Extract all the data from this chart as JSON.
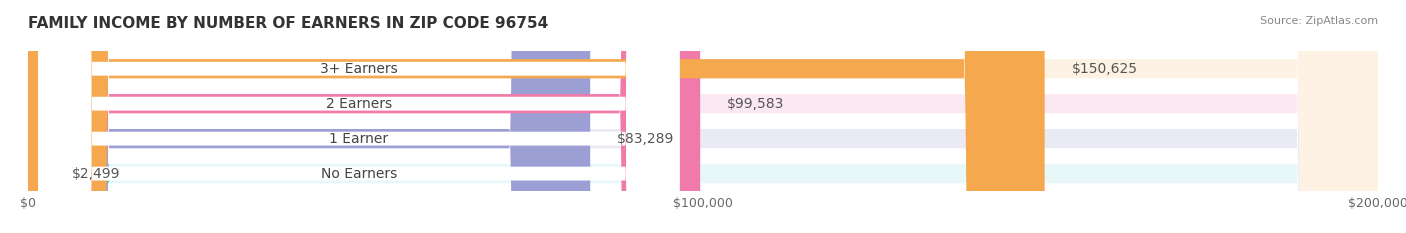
{
  "title": "FAMILY INCOME BY NUMBER OF EARNERS IN ZIP CODE 96754",
  "source": "Source: ZipAtlas.com",
  "categories": [
    "No Earners",
    "1 Earner",
    "2 Earners",
    "3+ Earners"
  ],
  "values": [
    2499,
    83289,
    99583,
    150625
  ],
  "labels": [
    "$2,499",
    "$83,289",
    "$99,583",
    "$150,625"
  ],
  "bar_colors": [
    "#5ecfcf",
    "#9b9fd4",
    "#f07aaa",
    "#f5a84e"
  ],
  "bar_bg_colors": [
    "#e8f8f8",
    "#eaeaf5",
    "#fce8f2",
    "#fdf2e4"
  ],
  "xlim": [
    0,
    200000
  ],
  "xtick_values": [
    0,
    100000,
    200000
  ],
  "xtick_labels": [
    "$0",
    "$100,000",
    "$200,000"
  ],
  "title_fontsize": 11,
  "source_fontsize": 8,
  "label_fontsize": 10,
  "bar_height": 0.55,
  "background_color": "#ffffff",
  "bar_label_color": "#555555",
  "title_color": "#333333",
  "source_color": "#888888"
}
